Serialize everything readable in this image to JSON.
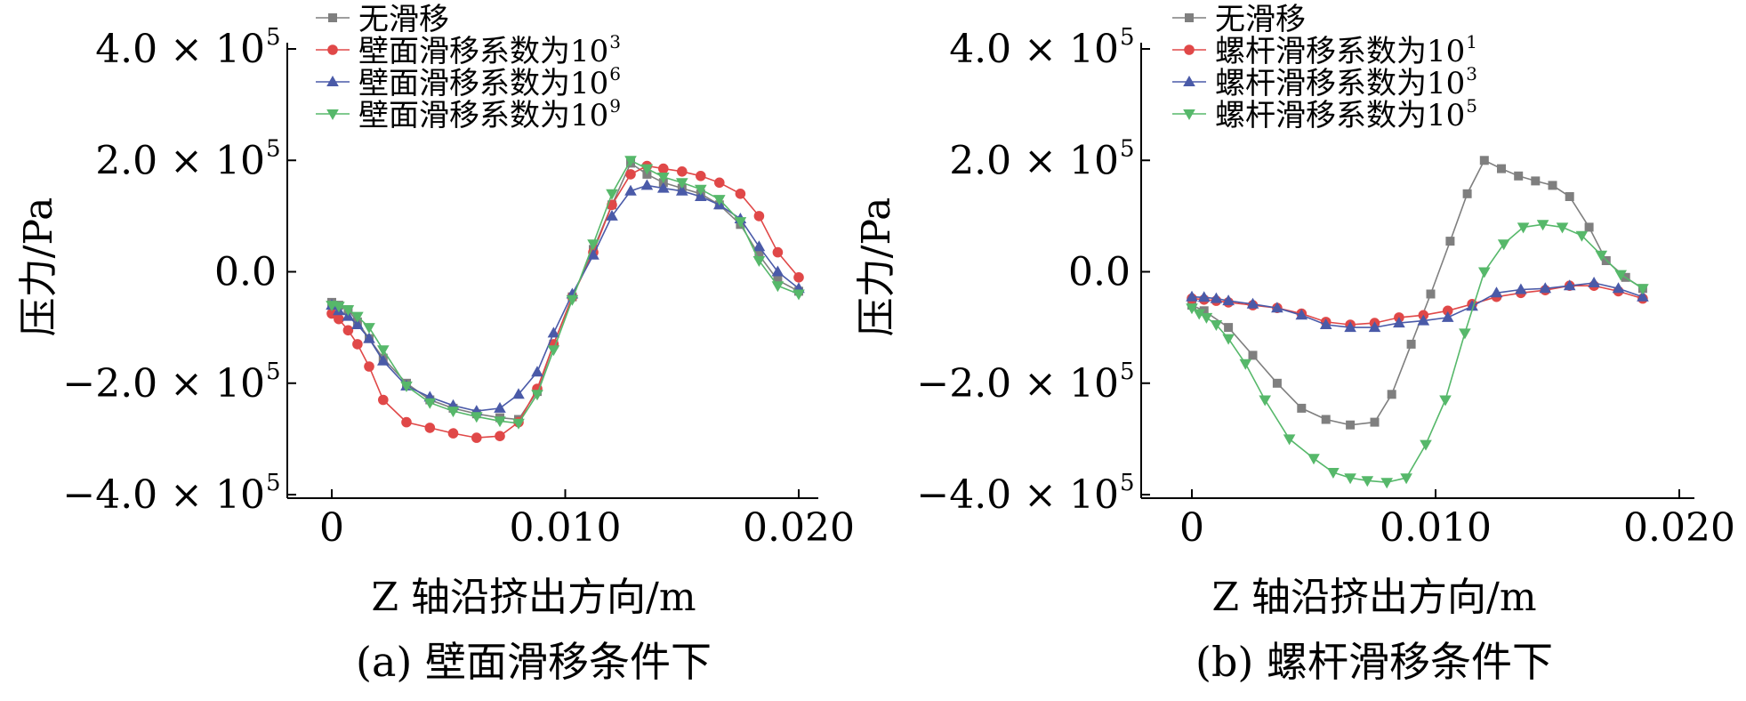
{
  "figure": {
    "panels": [
      {
        "caption": "(a) 壁面滑移条件下",
        "xlabel": "Z 轴沿挤出方向/m",
        "ylabel": "压力/Pa",
        "xticks": [
          {
            "v": 0,
            "label": "0"
          },
          {
            "v": 0.01,
            "label": "0.010"
          },
          {
            "v": 0.02,
            "label": "0.020"
          }
        ],
        "yticks": [
          {
            "v": 400000,
            "base": "4.0 × 10",
            "exp": "5"
          },
          {
            "v": 200000,
            "base": "2.0 × 10",
            "exp": "5"
          },
          {
            "v": 0,
            "base": "0.0",
            "exp": ""
          },
          {
            "v": -200000,
            "base": "−2.0 × 10",
            "exp": "5"
          },
          {
            "v": -400000,
            "base": "−4.0 × 10",
            "exp": "5"
          }
        ]
      },
      {
        "caption": "(b) 螺杆滑移条件下",
        "xlabel": "Z 轴沿挤出方向/m",
        "ylabel": "压力/Pa",
        "xticks": [
          {
            "v": 0,
            "label": "0"
          },
          {
            "v": 0.01,
            "label": "0.010"
          },
          {
            "v": 0.02,
            "label": "0.020"
          }
        ],
        "yticks": [
          {
            "v": 400000,
            "base": "4.0 × 10",
            "exp": "5"
          },
          {
            "v": 200000,
            "base": "2.0 × 10",
            "exp": "5"
          },
          {
            "v": 0,
            "base": "0.0",
            "exp": ""
          },
          {
            "v": -200000,
            "base": "−2.0 × 10",
            "exp": "5"
          },
          {
            "v": -400000,
            "base": "−4.0 × 10",
            "exp": "5"
          }
        ]
      }
    ]
  },
  "chart_data": [
    {
      "type": "line",
      "title": "",
      "caption": "(a) 壁面滑移条件下",
      "xlabel": "Z 轴沿挤出方向/m",
      "ylabel": "压力/Pa",
      "xlim": [
        -0.002,
        0.0205
      ],
      "ylim": [
        -400000,
        400000
      ],
      "legend_position": "top-left",
      "series": [
        {
          "name": "无滑移",
          "legend_base": "无滑移",
          "legend_exp": "",
          "color": "#7f7f7f",
          "marker": "square",
          "x": [
            0.0,
            0.0003,
            0.0007,
            0.0011,
            0.0016,
            0.0022,
            0.0032,
            0.0042,
            0.0052,
            0.0062,
            0.0072,
            0.008,
            0.0088,
            0.0095,
            0.0103,
            0.0112,
            0.012,
            0.0128,
            0.0135,
            0.0142,
            0.015,
            0.0158,
            0.0166,
            0.0175,
            0.0183,
            0.0191,
            0.02
          ],
          "y": [
            -55000,
            -60000,
            -68000,
            -90000,
            -120000,
            -155000,
            -200000,
            -230000,
            -245000,
            -255000,
            -262000,
            -265000,
            -215000,
            -130000,
            -45000,
            40000,
            120000,
            195000,
            175000,
            160000,
            150000,
            140000,
            120000,
            85000,
            30000,
            -15000,
            -35000
          ]
        },
        {
          "name": "壁面滑移系数为10³",
          "legend_base": "壁面滑移系数为10",
          "legend_exp": "3",
          "color": "#e04848",
          "marker": "circle",
          "x": [
            0.0,
            0.0003,
            0.0007,
            0.0011,
            0.0016,
            0.0022,
            0.0032,
            0.0042,
            0.0052,
            0.0062,
            0.0072,
            0.008,
            0.0088,
            0.0095,
            0.0103,
            0.0112,
            0.012,
            0.0128,
            0.0135,
            0.0142,
            0.015,
            0.0158,
            0.0166,
            0.0175,
            0.0183,
            0.0191,
            0.02
          ],
          "y": [
            -75000,
            -85000,
            -105000,
            -130000,
            -170000,
            -230000,
            -270000,
            -280000,
            -290000,
            -298000,
            -295000,
            -270000,
            -210000,
            -130000,
            -45000,
            35000,
            120000,
            175000,
            190000,
            185000,
            180000,
            172000,
            160000,
            140000,
            100000,
            35000,
            -10000
          ]
        },
        {
          "name": "壁面滑移系数为10⁶",
          "legend_base": "壁面滑移系数为10",
          "legend_exp": "6",
          "color": "#4a5aa8",
          "marker": "triangle-up",
          "x": [
            0.0,
            0.0003,
            0.0007,
            0.0011,
            0.0016,
            0.0022,
            0.0032,
            0.0042,
            0.0052,
            0.0062,
            0.0072,
            0.008,
            0.0088,
            0.0095,
            0.0103,
            0.0112,
            0.012,
            0.0128,
            0.0135,
            0.0142,
            0.015,
            0.0158,
            0.0166,
            0.0175,
            0.0183,
            0.0191,
            0.02
          ],
          "y": [
            -60000,
            -70000,
            -80000,
            -95000,
            -120000,
            -160000,
            -205000,
            -225000,
            -240000,
            -250000,
            -245000,
            -220000,
            -180000,
            -110000,
            -40000,
            30000,
            100000,
            145000,
            155000,
            150000,
            145000,
            135000,
            120000,
            95000,
            45000,
            0,
            -30000
          ]
        },
        {
          "name": "壁面滑移系数为10⁹",
          "legend_base": "壁面滑移系数为10",
          "legend_exp": "9",
          "color": "#56b86a",
          "marker": "triangle-down",
          "x": [
            0.0,
            0.0003,
            0.0007,
            0.0011,
            0.0016,
            0.0022,
            0.0032,
            0.0042,
            0.0052,
            0.0062,
            0.0072,
            0.008,
            0.0088,
            0.0095,
            0.0103,
            0.0112,
            0.012,
            0.0128,
            0.0135,
            0.0142,
            0.015,
            0.0158,
            0.0166,
            0.0175,
            0.0183,
            0.0191,
            0.02
          ],
          "y": [
            -60000,
            -62000,
            -68000,
            -80000,
            -100000,
            -140000,
            -205000,
            -235000,
            -250000,
            -260000,
            -268000,
            -272000,
            -220000,
            -140000,
            -50000,
            50000,
            140000,
            200000,
            185000,
            170000,
            160000,
            148000,
            130000,
            90000,
            20000,
            -25000,
            -40000
          ]
        }
      ]
    },
    {
      "type": "line",
      "title": "",
      "caption": "(b) 螺杆滑移条件下",
      "xlabel": "Z 轴沿挤出方向/m",
      "ylabel": "压力/Pa",
      "xlim": [
        -0.002,
        0.0205
      ],
      "ylim": [
        -400000,
        400000
      ],
      "legend_position": "top-left",
      "series": [
        {
          "name": "无滑移",
          "legend_base": "无滑移",
          "legend_exp": "",
          "color": "#7f7f7f",
          "marker": "square",
          "x": [
            0.0,
            0.0005,
            0.0015,
            0.0025,
            0.0035,
            0.0045,
            0.0055,
            0.0065,
            0.0075,
            0.0082,
            0.009,
            0.0098,
            0.0106,
            0.0113,
            0.012,
            0.0127,
            0.0134,
            0.0141,
            0.0148,
            0.0155,
            0.0163,
            0.017,
            0.0178,
            0.0185
          ],
          "y": [
            -60000,
            -70000,
            -100000,
            -150000,
            -200000,
            -245000,
            -265000,
            -275000,
            -270000,
            -220000,
            -130000,
            -40000,
            55000,
            140000,
            200000,
            185000,
            172000,
            163000,
            155000,
            135000,
            80000,
            20000,
            -10000,
            -30000
          ]
        },
        {
          "name": "螺杆滑移系数为10¹",
          "legend_base": "螺杆滑移系数为10",
          "legend_exp": "1",
          "color": "#e04848",
          "marker": "circle",
          "x": [
            0.0,
            0.0005,
            0.001,
            0.0015,
            0.0025,
            0.0035,
            0.0045,
            0.0055,
            0.0065,
            0.0075,
            0.0085,
            0.0095,
            0.0105,
            0.0115,
            0.0125,
            0.0135,
            0.0145,
            0.0155,
            0.0165,
            0.0175,
            0.0185
          ],
          "y": [
            -48000,
            -50000,
            -52000,
            -55000,
            -60000,
            -65000,
            -75000,
            -90000,
            -95000,
            -92000,
            -82000,
            -78000,
            -70000,
            -58000,
            -45000,
            -38000,
            -33000,
            -25000,
            -25000,
            -35000,
            -48000
          ]
        },
        {
          "name": "螺杆滑移系数为10³",
          "legend_base": "螺杆滑移系数为10",
          "legend_exp": "3",
          "color": "#4a5aa8",
          "marker": "triangle-up",
          "x": [
            0.0,
            0.0005,
            0.001,
            0.0015,
            0.0025,
            0.0035,
            0.0045,
            0.0055,
            0.0065,
            0.0075,
            0.0085,
            0.0095,
            0.0105,
            0.0115,
            0.0125,
            0.0135,
            0.0145,
            0.0155,
            0.0165,
            0.0175,
            0.0185
          ],
          "y": [
            -45000,
            -46000,
            -48000,
            -52000,
            -58000,
            -65000,
            -78000,
            -95000,
            -100000,
            -100000,
            -92000,
            -88000,
            -82000,
            -62000,
            -38000,
            -32000,
            -30000,
            -25000,
            -20000,
            -30000,
            -45000
          ]
        },
        {
          "name": "螺杆滑移系数为10⁵",
          "legend_base": "螺杆滑移系数为10",
          "legend_exp": "5",
          "color": "#56b86a",
          "marker": "triangle-down",
          "x": [
            0.0,
            0.0003,
            0.0006,
            0.001,
            0.0015,
            0.0022,
            0.003,
            0.004,
            0.005,
            0.0058,
            0.0065,
            0.0072,
            0.008,
            0.0088,
            0.0096,
            0.0104,
            0.0112,
            0.012,
            0.0128,
            0.0136,
            0.0144,
            0.0152,
            0.016,
            0.0168,
            0.0176,
            0.0185
          ],
          "y": [
            -65000,
            -75000,
            -82000,
            -95000,
            -120000,
            -165000,
            -230000,
            -300000,
            -335000,
            -360000,
            -370000,
            -375000,
            -378000,
            -370000,
            -310000,
            -230000,
            -110000,
            0,
            50000,
            80000,
            85000,
            80000,
            65000,
            30000,
            -5000,
            -30000
          ]
        }
      ]
    }
  ]
}
